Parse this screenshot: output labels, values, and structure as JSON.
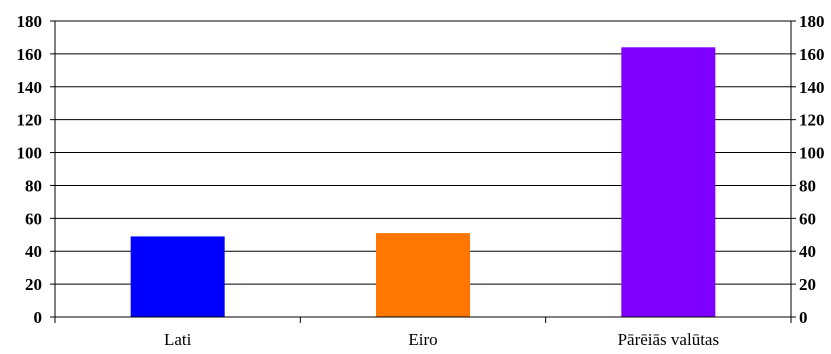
{
  "chart_data": {
    "type": "bar",
    "title": "",
    "xlabel": "",
    "ylabel": "",
    "categories": [
      "Lati",
      "Eiro",
      "Pārēiās valūtas"
    ],
    "values": [
      49,
      51,
      164
    ],
    "colors": [
      "#0000ff",
      "#ff7700",
      "#7f00ff"
    ],
    "ylim": [
      0,
      180
    ],
    "yticks": [
      0,
      20,
      40,
      60,
      80,
      100,
      120,
      140,
      160,
      180
    ],
    "grid": true,
    "secondary_axis": true,
    "legend": "none"
  }
}
